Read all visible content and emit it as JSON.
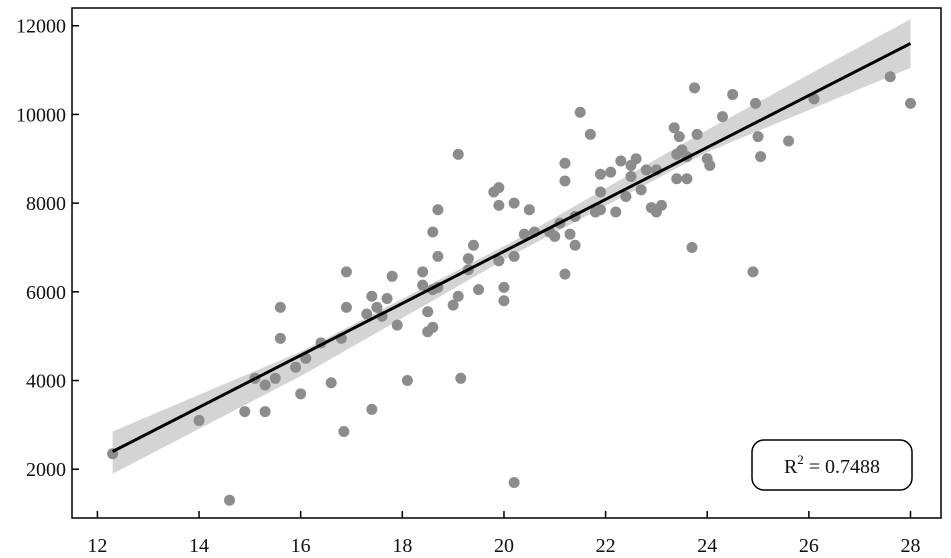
{
  "chart_data": {
    "type": "scatter",
    "xlim": [
      11.5,
      28.6
    ],
    "ylim": [
      900,
      12400
    ],
    "x_ticks": [
      12,
      14,
      16,
      18,
      20,
      22,
      24,
      26,
      28
    ],
    "y_ticks": [
      2000,
      4000,
      6000,
      8000,
      10000,
      12000
    ],
    "x_tick_labels": [
      "12",
      "14",
      "16",
      "18",
      "20",
      "22",
      "24",
      "26",
      "28"
    ],
    "y_tick_labels": [
      "2000",
      "4000",
      "6000",
      "8000",
      "10000",
      "12000"
    ],
    "grid": false,
    "points": [
      [
        12.3,
        2350
      ],
      [
        14.0,
        3100
      ],
      [
        14.6,
        1300
      ],
      [
        14.9,
        3300
      ],
      [
        15.1,
        4050
      ],
      [
        15.3,
        3300
      ],
      [
        15.3,
        3900
      ],
      [
        15.5,
        4050
      ],
      [
        15.6,
        5650
      ],
      [
        15.6,
        4950
      ],
      [
        15.9,
        4300
      ],
      [
        16.0,
        3700
      ],
      [
        16.1,
        4500
      ],
      [
        16.4,
        4850
      ],
      [
        16.6,
        3950
      ],
      [
        16.8,
        4950
      ],
      [
        16.9,
        6450
      ],
      [
        16.9,
        5650
      ],
      [
        16.85,
        2850
      ],
      [
        17.3,
        5500
      ],
      [
        17.4,
        5900
      ],
      [
        17.4,
        3350
      ],
      [
        17.5,
        5650
      ],
      [
        17.6,
        5450
      ],
      [
        17.7,
        5850
      ],
      [
        17.8,
        6350
      ],
      [
        17.9,
        5250
      ],
      [
        18.1,
        4000
      ],
      [
        18.4,
        6150
      ],
      [
        18.4,
        6450
      ],
      [
        18.5,
        5100
      ],
      [
        18.5,
        5550
      ],
      [
        18.6,
        7350
      ],
      [
        18.6,
        6050
      ],
      [
        18.6,
        5200
      ],
      [
        18.7,
        6100
      ],
      [
        18.7,
        6800
      ],
      [
        18.7,
        7850
      ],
      [
        19.0,
        5700
      ],
      [
        19.1,
        5900
      ],
      [
        19.1,
        9100
      ],
      [
        19.15,
        4050
      ],
      [
        19.3,
        6500
      ],
      [
        19.3,
        6750
      ],
      [
        19.4,
        7050
      ],
      [
        19.5,
        6050
      ],
      [
        19.8,
        8250
      ],
      [
        19.9,
        8350
      ],
      [
        19.9,
        7950
      ],
      [
        19.9,
        6700
      ],
      [
        20.0,
        5800
      ],
      [
        20.0,
        6100
      ],
      [
        20.2,
        6800
      ],
      [
        20.2,
        8000
      ],
      [
        20.2,
        1700
      ],
      [
        20.4,
        7300
      ],
      [
        20.5,
        7850
      ],
      [
        20.6,
        7350
      ],
      [
        20.9,
        7350
      ],
      [
        21.0,
        7250
      ],
      [
        21.1,
        7550
      ],
      [
        21.2,
        6400
      ],
      [
        21.2,
        8500
      ],
      [
        21.2,
        8900
      ],
      [
        21.3,
        7300
      ],
      [
        21.4,
        7700
      ],
      [
        21.4,
        7050
      ],
      [
        21.5,
        10050
      ],
      [
        21.7,
        9550
      ],
      [
        21.8,
        7800
      ],
      [
        21.9,
        7850
      ],
      [
        21.9,
        8250
      ],
      [
        21.9,
        8650
      ],
      [
        22.1,
        8700
      ],
      [
        22.2,
        7800
      ],
      [
        22.3,
        8950
      ],
      [
        22.4,
        8150
      ],
      [
        22.5,
        8850
      ],
      [
        22.5,
        8600
      ],
      [
        22.6,
        9000
      ],
      [
        22.7,
        8300
      ],
      [
        22.8,
        8750
      ],
      [
        22.9,
        7900
      ],
      [
        23.0,
        8750
      ],
      [
        23.0,
        7800
      ],
      [
        23.1,
        7950
      ],
      [
        23.35,
        9700
      ],
      [
        23.4,
        9100
      ],
      [
        23.4,
        8550
      ],
      [
        23.45,
        9500
      ],
      [
        23.5,
        9200
      ],
      [
        23.6,
        8550
      ],
      [
        23.6,
        9050
      ],
      [
        23.7,
        7000
      ],
      [
        23.75,
        10600
      ],
      [
        23.8,
        9550
      ],
      [
        24.0,
        9000
      ],
      [
        24.05,
        8850
      ],
      [
        24.3,
        9950
      ],
      [
        24.5,
        10450
      ],
      [
        24.9,
        6450
      ],
      [
        24.95,
        10250
      ],
      [
        25.0,
        9500
      ],
      [
        25.05,
        9050
      ],
      [
        25.6,
        9400
      ],
      [
        26.1,
        10350
      ],
      [
        27.6,
        10850
      ],
      [
        28.0,
        10250
      ]
    ],
    "fit_line": {
      "x": [
        12.3,
        28.0
      ],
      "y": [
        2400,
        11600
      ]
    },
    "confidence_band": {
      "x": [
        12.3,
        16.0,
        20.2,
        24.0,
        28.0
      ],
      "upper": [
        2850,
        4650,
        7150,
        9650,
        12150
      ],
      "lower": [
        1900,
        4100,
        6850,
        9150,
        11050
      ]
    },
    "annotation": {
      "r2_prefix": "R",
      "r2_sup": "2",
      "r2_value": " = 0.7488",
      "placement": "bottom-right"
    },
    "colors": {
      "points": "#8c8c8c",
      "line": "#000000",
      "band": "#d4d4d4",
      "axis": "#000000"
    }
  }
}
